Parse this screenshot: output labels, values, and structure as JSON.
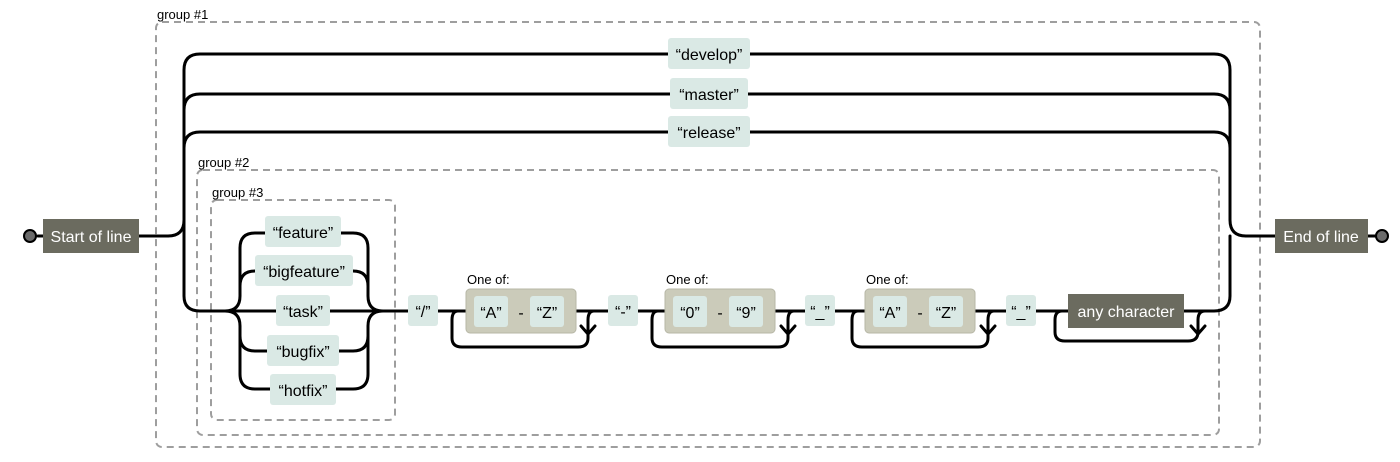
{
  "groups": {
    "group1": "group #1",
    "group2": "group #2",
    "group3": "group #3"
  },
  "start_label": "Start of line",
  "end_label": "End of line",
  "top_options": [
    "“develop”",
    "“master”",
    "“release”"
  ],
  "prefix_options": [
    "“feature”",
    "“bigfeature”",
    "“task”",
    "“bugfix”",
    "“hotfix”"
  ],
  "slash": "“/”",
  "dash": "“-”",
  "underscore": "“_”",
  "one_of": "One of:",
  "range_sep": "-",
  "range1": {
    "from": "“A”",
    "to": "“Z”"
  },
  "range2": {
    "from": "“0”",
    "to": "“9”"
  },
  "range3": {
    "from": "“A”",
    "to": "“Z”"
  },
  "any_char": "any character",
  "colors": {
    "literal_fill": "#dae9e5",
    "range_fill": "#cbcbba",
    "anchor_fill": "#6b6b5f",
    "group_border": "#9e9e9e"
  }
}
